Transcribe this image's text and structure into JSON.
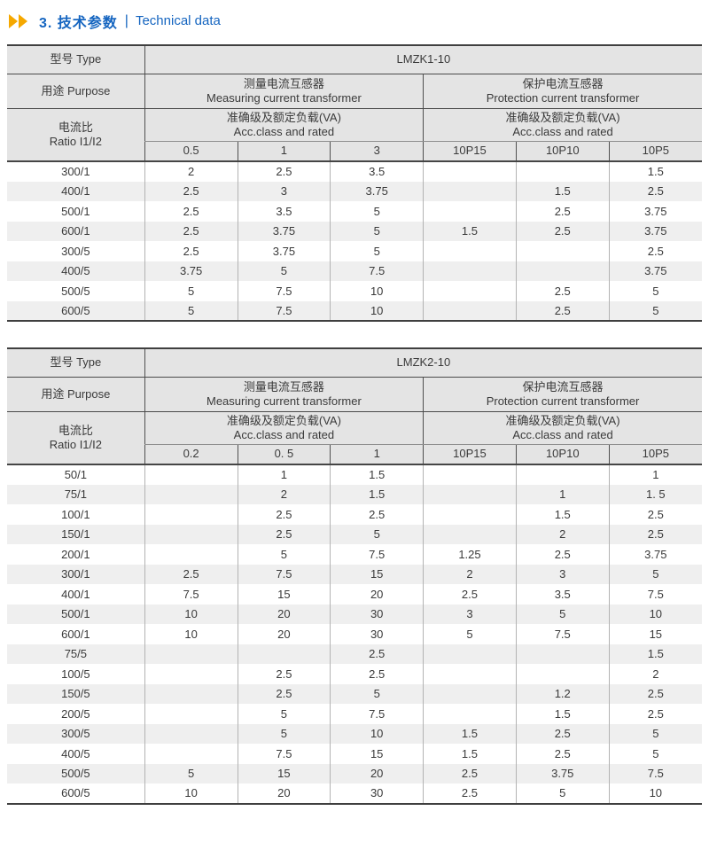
{
  "title": {
    "icon": "double-right-arrows-icon",
    "text_zh": "3. 技术参数",
    "separator": "|",
    "text_en": "Technical data",
    "accent_blue": "#1565c0",
    "arrow_yellow": "#f5a800"
  },
  "colors": {
    "header_bg": "#e4e4e4",
    "stripe_bg": "#efefef",
    "border_dark": "#3f3f3f",
    "border_light": "#b3b3b3",
    "text": "#3a3a3a"
  },
  "tables": [
    {
      "model_label": "型号 Type",
      "model": "LMZK1-10",
      "purpose_label": "用途 Purpose",
      "measuring_zh": "测量电流互感器",
      "measuring_en": "Measuring current transformer",
      "protection_zh": "保护电流互感器",
      "protection_en": "Protection current transformer",
      "ratio_label_zh": "电流比",
      "ratio_label_en": "Ratio I1/I2",
      "acc_zh": "准确级及额定负载(VA)",
      "acc_en": "Acc.class and rated",
      "measuring_columns": [
        "0.5",
        "1",
        "3"
      ],
      "protection_columns": [
        "10P15",
        "10P10",
        "10P5"
      ],
      "rows": [
        [
          "300/1",
          "2",
          "2.5",
          "3.5",
          "",
          "",
          "1.5"
        ],
        [
          "400/1",
          "2.5",
          "3",
          "3.75",
          "",
          "1.5",
          "2.5"
        ],
        [
          "500/1",
          "2.5",
          "3.5",
          "5",
          "",
          "2.5",
          "3.75"
        ],
        [
          "600/1",
          "2.5",
          "3.75",
          "5",
          "1.5",
          "2.5",
          "3.75"
        ],
        [
          "300/5",
          "2.5",
          "3.75",
          "5",
          "",
          "",
          "2.5"
        ],
        [
          "400/5",
          "3.75",
          "5",
          "7.5",
          "",
          "",
          "3.75"
        ],
        [
          "500/5",
          "5",
          "7.5",
          "10",
          "",
          "2.5",
          "5"
        ],
        [
          "600/5",
          "5",
          "7.5",
          "10",
          "",
          "2.5",
          "5"
        ]
      ]
    },
    {
      "model_label": "型号 Type",
      "model": "LMZK2-10",
      "purpose_label": "用途 Purpose",
      "measuring_zh": "测量电流互感器",
      "measuring_en": "Measuring current transformer",
      "protection_zh": "保护电流互感器",
      "protection_en": "Protection current transformer",
      "ratio_label_zh": "电流比",
      "ratio_label_en": "Ratio I1/I2",
      "acc_zh": "准确级及额定负载(VA)",
      "acc_en": "Acc.class and rated",
      "measuring_columns": [
        "0.2",
        "0. 5",
        "1"
      ],
      "protection_columns": [
        "10P15",
        "10P10",
        "10P5"
      ],
      "rows": [
        [
          "50/1",
          "",
          "1",
          "1.5",
          "",
          "",
          "1"
        ],
        [
          "75/1",
          "",
          "2",
          "1.5",
          "",
          "1",
          "1. 5"
        ],
        [
          "100/1",
          "",
          "2.5",
          "2.5",
          "",
          "1.5",
          "2.5"
        ],
        [
          "150/1",
          "",
          "2.5",
          "5",
          "",
          "2",
          "2.5"
        ],
        [
          "200/1",
          "",
          "5",
          "7.5",
          "1.25",
          "2.5",
          "3.75"
        ],
        [
          "300/1",
          "2.5",
          "7.5",
          "15",
          "2",
          "3",
          "5"
        ],
        [
          "400/1",
          "7.5",
          "15",
          "20",
          "2.5",
          "3.5",
          "7.5"
        ],
        [
          "500/1",
          "10",
          "20",
          "30",
          "3",
          "5",
          "10"
        ],
        [
          "600/1",
          "10",
          "20",
          "30",
          "5",
          "7.5",
          "15"
        ],
        [
          "75/5",
          "",
          "",
          "2.5",
          "",
          "",
          "1.5"
        ],
        [
          "100/5",
          "",
          "2.5",
          "2.5",
          "",
          "",
          "2"
        ],
        [
          "150/5",
          "",
          "2.5",
          "5",
          "",
          "1.2",
          "2.5"
        ],
        [
          "200/5",
          "",
          "5",
          "7.5",
          "",
          "1.5",
          "2.5"
        ],
        [
          "300/5",
          "",
          "5",
          "10",
          "1.5",
          "2.5",
          "5"
        ],
        [
          "400/5",
          "",
          "7.5",
          "15",
          "1.5",
          "2.5",
          "5"
        ],
        [
          "500/5",
          "5",
          "15",
          "20",
          "2.5",
          "3.75",
          "7.5"
        ],
        [
          "600/5",
          "10",
          "20",
          "30",
          "2.5",
          "5",
          "10"
        ]
      ]
    }
  ]
}
